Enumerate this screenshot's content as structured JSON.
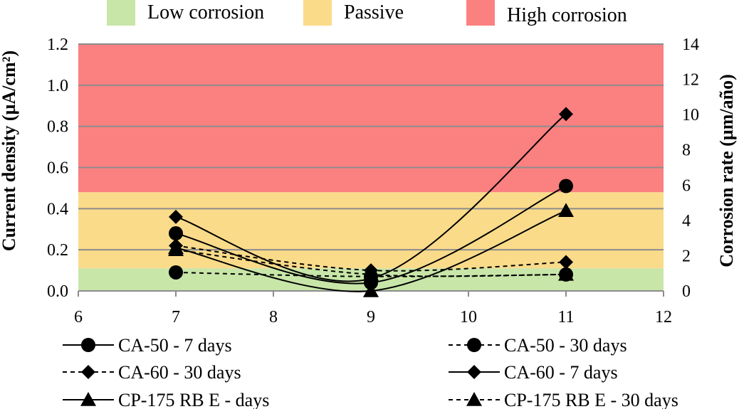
{
  "chart_data": {
    "type": "line",
    "title": "",
    "xlabel": "",
    "ylabel": "Current density  (µA/cm²)",
    "y2label": "Corrosion rate (µm/año)",
    "xlim": [
      6,
      12
    ],
    "ylim": [
      0,
      1.2
    ],
    "y2lim": [
      0,
      14
    ],
    "xticks": [
      "6",
      "7",
      "8",
      "9",
      "10",
      "11",
      "12"
    ],
    "yticks": [
      "0.0",
      "0.2",
      "0.4",
      "0.6",
      "0.8",
      "1.0",
      "1.2"
    ],
    "y2ticks": [
      "0",
      "2",
      "4",
      "6",
      "8",
      "10",
      "12",
      "14"
    ],
    "zones": [
      {
        "name": "Low corrosion",
        "from": 0,
        "to": 0.11,
        "color": "#c8e6a8"
      },
      {
        "name": "Passive",
        "from": 0.11,
        "to": 0.48,
        "color": "#fadb8a"
      },
      {
        "name": "High corrosion",
        "from": 0.48,
        "to": 1.2,
        "color": "#fb8080"
      }
    ],
    "series": [
      {
        "name": "CA-50 - 7 days",
        "marker": "circle",
        "dash": "solid",
        "x": [
          7,
          9,
          11
        ],
        "values": [
          0.28,
          0.04,
          0.51
        ]
      },
      {
        "name": "CA-50 - 30 days",
        "marker": "circle",
        "dash": "dashed",
        "x": [
          7,
          9,
          11
        ],
        "values": [
          0.09,
          0.07,
          0.08
        ]
      },
      {
        "name": "CA-60 - 30 days",
        "marker": "diamond",
        "dash": "dashed",
        "x": [
          7,
          9,
          11
        ],
        "values": [
          0.22,
          0.1,
          0.14
        ]
      },
      {
        "name": "CA-60 - 7 days",
        "marker": "diamond",
        "dash": "solid",
        "x": [
          7,
          9,
          11
        ],
        "values": [
          0.36,
          0.06,
          0.86
        ]
      },
      {
        "name": "CP-175 RB E - days",
        "marker": "triangle",
        "dash": "solid",
        "x": [
          7,
          9,
          11
        ],
        "values": [
          0.21,
          0.0,
          0.39
        ]
      },
      {
        "name": "CP-175 RB E - 30 days",
        "marker": "triangle",
        "dash": "dashed",
        "x": [
          7,
          9,
          11
        ],
        "values": [
          0.2,
          0.08,
          0.08
        ]
      }
    ]
  },
  "colors": {
    "line": "#000000",
    "grid": "#8c8c8c"
  }
}
